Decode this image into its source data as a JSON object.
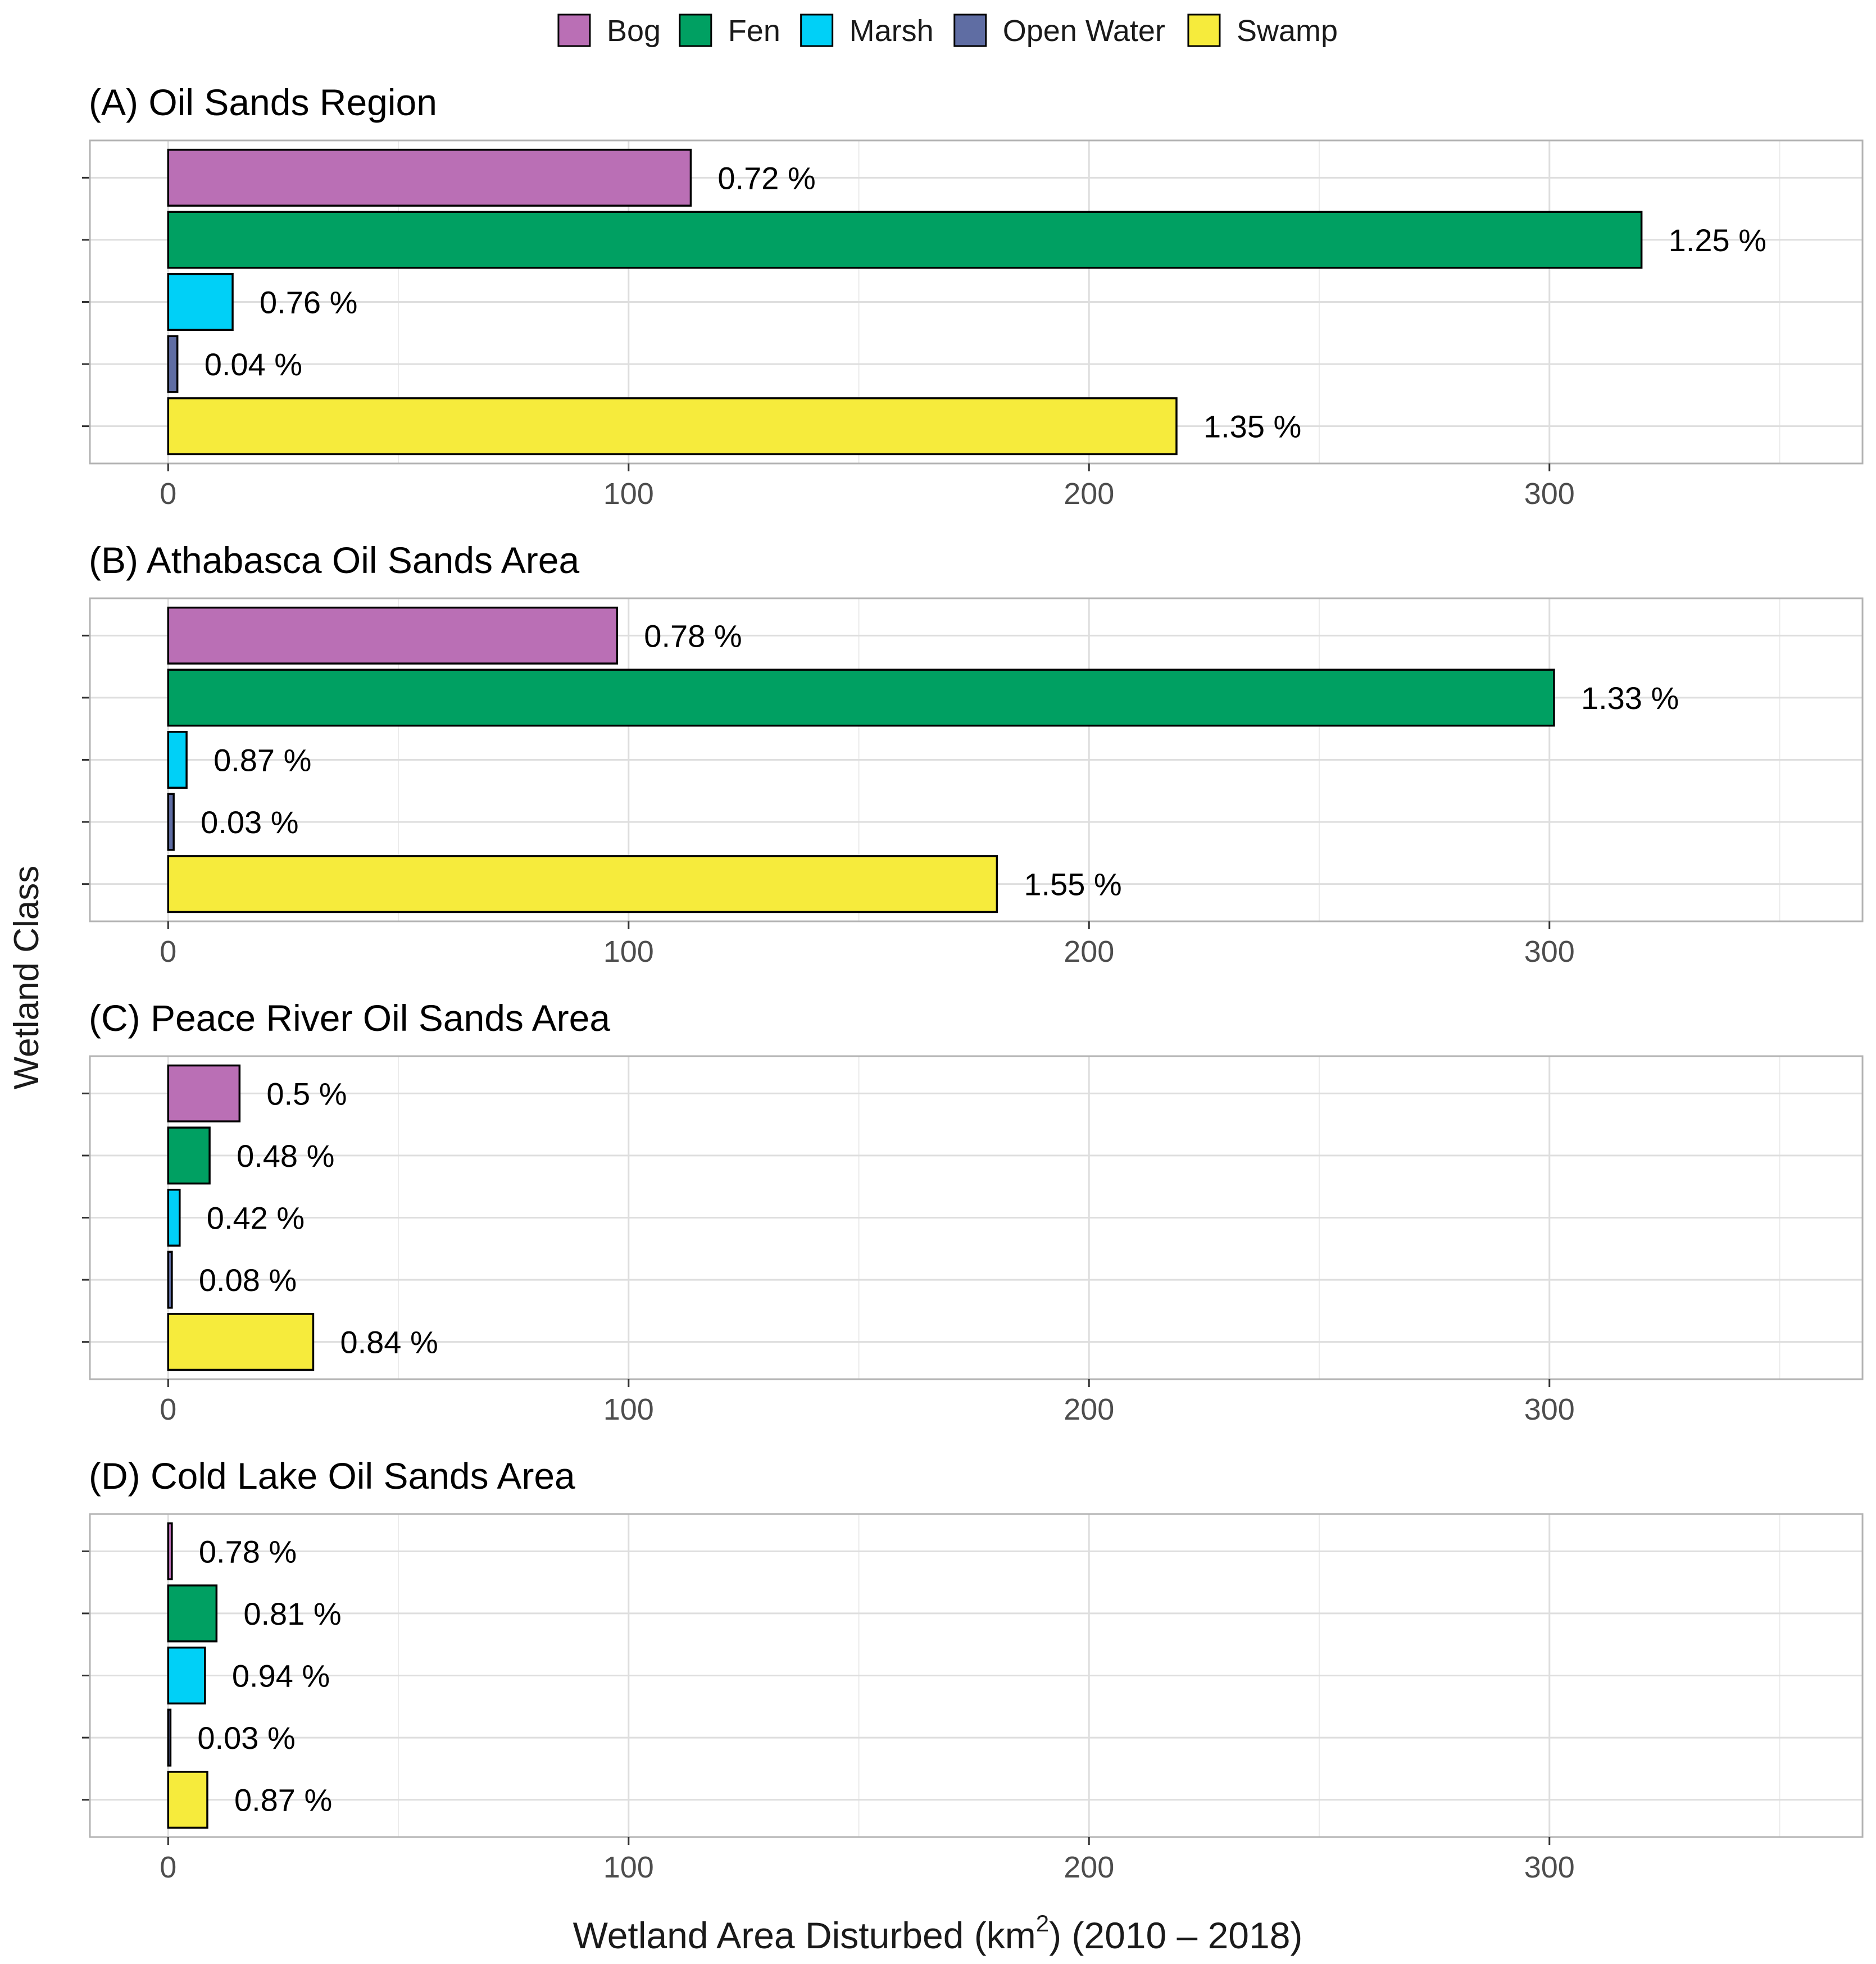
{
  "legend": {
    "items": [
      {
        "label": "Bog",
        "color": "#BA6FB5"
      },
      {
        "label": "Fen",
        "color": "#00A062"
      },
      {
        "label": "Marsh",
        "color": "#00D0F7"
      },
      {
        "label": "Open Water",
        "color": "#5F6DA3"
      },
      {
        "label": "Swamp",
        "color": "#F6EB3C"
      }
    ]
  },
  "axes": {
    "ylabel": "Wetland Class",
    "xlabel_main": "Wetland Area Disturbed (km",
    "xlabel_sup": "2",
    "xlabel_tail": ") (2010 – 2018)",
    "xticks": [
      0,
      100,
      200,
      300
    ],
    "xlim": [
      -17,
      368
    ]
  },
  "chart_data": [
    {
      "type": "bar",
      "title": "(A) Oil Sands Region",
      "categories": [
        "Bog",
        "Fen",
        "Marsh",
        "Open Water",
        "Swamp"
      ],
      "values": [
        113.5,
        320.0,
        14.0,
        2.0,
        219.0
      ],
      "labels": [
        "0.72 %",
        "1.25 %",
        "0.76 %",
        "0.04 %",
        "1.35 %"
      ],
      "xlim": [
        -17,
        368
      ]
    },
    {
      "type": "bar",
      "title": "(B) Athabasca Oil Sands Area",
      "categories": [
        "Bog",
        "Fen",
        "Marsh",
        "Open Water",
        "Swamp"
      ],
      "values": [
        97.5,
        301.0,
        4.0,
        1.2,
        180.0
      ],
      "labels": [
        "0.78 %",
        "1.33 %",
        "0.87 %",
        "0.03 %",
        "1.55 %"
      ],
      "xlim": [
        -17,
        368
      ]
    },
    {
      "type": "bar",
      "title": "(C) Peace River Oil Sands Area",
      "categories": [
        "Bog",
        "Fen",
        "Marsh",
        "Open Water",
        "Swamp"
      ],
      "values": [
        15.5,
        9.0,
        2.5,
        0.8,
        31.5
      ],
      "labels": [
        "0.5 %",
        "0.48 %",
        "0.42 %",
        "0.08 %",
        "0.84 %"
      ],
      "xlim": [
        -17,
        368
      ]
    },
    {
      "type": "bar",
      "title": "(D) Cold Lake Oil Sands Area",
      "categories": [
        "Bog",
        "Fen",
        "Marsh",
        "Open Water",
        "Swamp"
      ],
      "values": [
        0.8,
        10.5,
        8.0,
        0.5,
        8.5
      ],
      "labels": [
        "0.78 %",
        "0.81 %",
        "0.94 %",
        "0.03 %",
        "0.87 %"
      ],
      "xlim": [
        -17,
        368
      ]
    }
  ]
}
